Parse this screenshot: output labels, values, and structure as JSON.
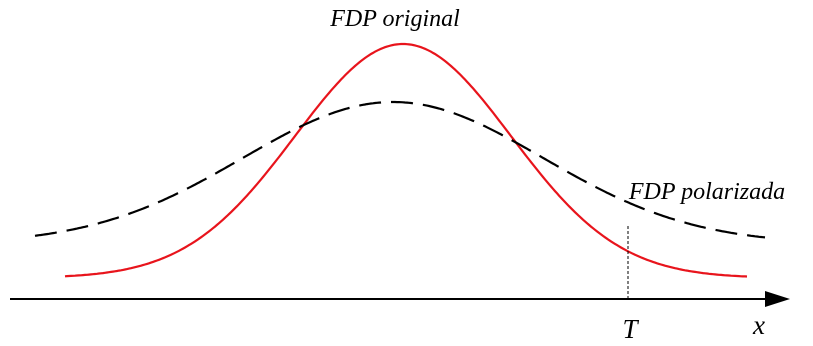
{
  "labels": {
    "original": "FDP original",
    "biased": "FDP polarizada",
    "threshold": "T",
    "axis": "x"
  },
  "colors": {
    "original_curve": "#e8141c",
    "biased_curve": "#000000",
    "axis": "#000000"
  },
  "curves": {
    "original": {
      "style": "solid",
      "relative_peak": 1.0,
      "relative_width": 1.0
    },
    "biased": {
      "style": "dashed",
      "relative_peak": 0.75,
      "relative_width": 1.8
    }
  }
}
